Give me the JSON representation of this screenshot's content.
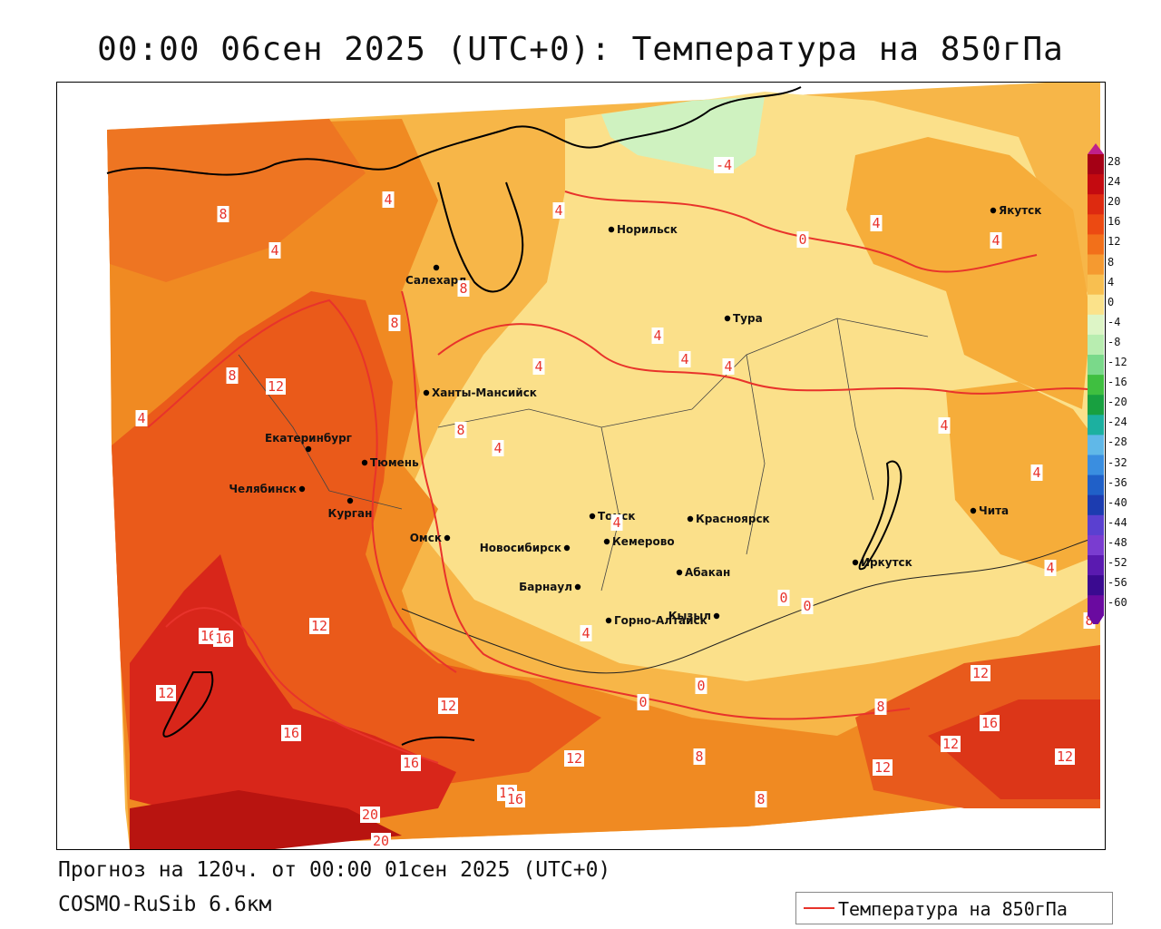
{
  "title": "00:00 06сен 2025 (UTC+0): Температура на 850гПа",
  "footer": {
    "forecast": "Прогноз на 120ч. от 00:00 01сен 2025 (UTC+0)",
    "model": "COSMO-RuSib 6.6км"
  },
  "legend": {
    "label": "Температура на 850гПа",
    "line_color": "#e8332b"
  },
  "colorbar": {
    "ticks": [
      "28",
      "24",
      "20",
      "16",
      "12",
      "8",
      "4",
      "0",
      "-4",
      "-8",
      "-12",
      "-16",
      "-20",
      "-24",
      "-28",
      "-32",
      "-36",
      "-40",
      "-44",
      "-48",
      "-52",
      "-56",
      "-60"
    ],
    "colors": [
      "#a50015",
      "#c40a10",
      "#dd2a10",
      "#ec4a12",
      "#f2701a",
      "#f59a30",
      "#f8bf50",
      "#fbe28a",
      "#ddf5c6",
      "#b8edb0",
      "#7ad98a",
      "#3fbf40",
      "#18a040",
      "#1cb0a0",
      "#60b8e8",
      "#3a8ee0",
      "#2060c8",
      "#1c3cb0",
      "#5a40d0",
      "#7a3cd0",
      "#5a1ab0",
      "#3a0a90",
      "#6a0aa0"
    ]
  },
  "cities": [
    {
      "name": "Якутск"
    },
    {
      "name": "Норильск"
    },
    {
      "name": "Салехард"
    },
    {
      "name": "Тура"
    },
    {
      "name": "Ханты-Мансийск"
    },
    {
      "name": "Екатеринбург"
    },
    {
      "name": "Тюмень"
    },
    {
      "name": "Челябинск"
    },
    {
      "name": "Курган"
    },
    {
      "name": "Омск"
    },
    {
      "name": "Новосибирск"
    },
    {
      "name": "Томск"
    },
    {
      "name": "Кемерово"
    },
    {
      "name": "Красноярск"
    },
    {
      "name": "Барнаул"
    },
    {
      "name": "Абакан"
    },
    {
      "name": "Горно-Алтайск"
    },
    {
      "name": "Кызыл"
    },
    {
      "name": "Иркутск"
    },
    {
      "name": "Чита"
    }
  ],
  "isotherm_labels": [
    "-4",
    "0",
    "4",
    "4",
    "4",
    "4",
    "4",
    "4",
    "4",
    "4",
    "4",
    "4",
    "4",
    "4",
    "4",
    "4",
    "4",
    "4",
    "8",
    "8",
    "8",
    "8",
    "8",
    "8",
    "8",
    "8",
    "8",
    "12",
    "12",
    "12",
    "12",
    "12",
    "12",
    "12",
    "12",
    "12",
    "12",
    "16",
    "16",
    "16",
    "16",
    "16",
    "16",
    "20",
    "20",
    "0",
    "0",
    "0",
    "0"
  ]
}
